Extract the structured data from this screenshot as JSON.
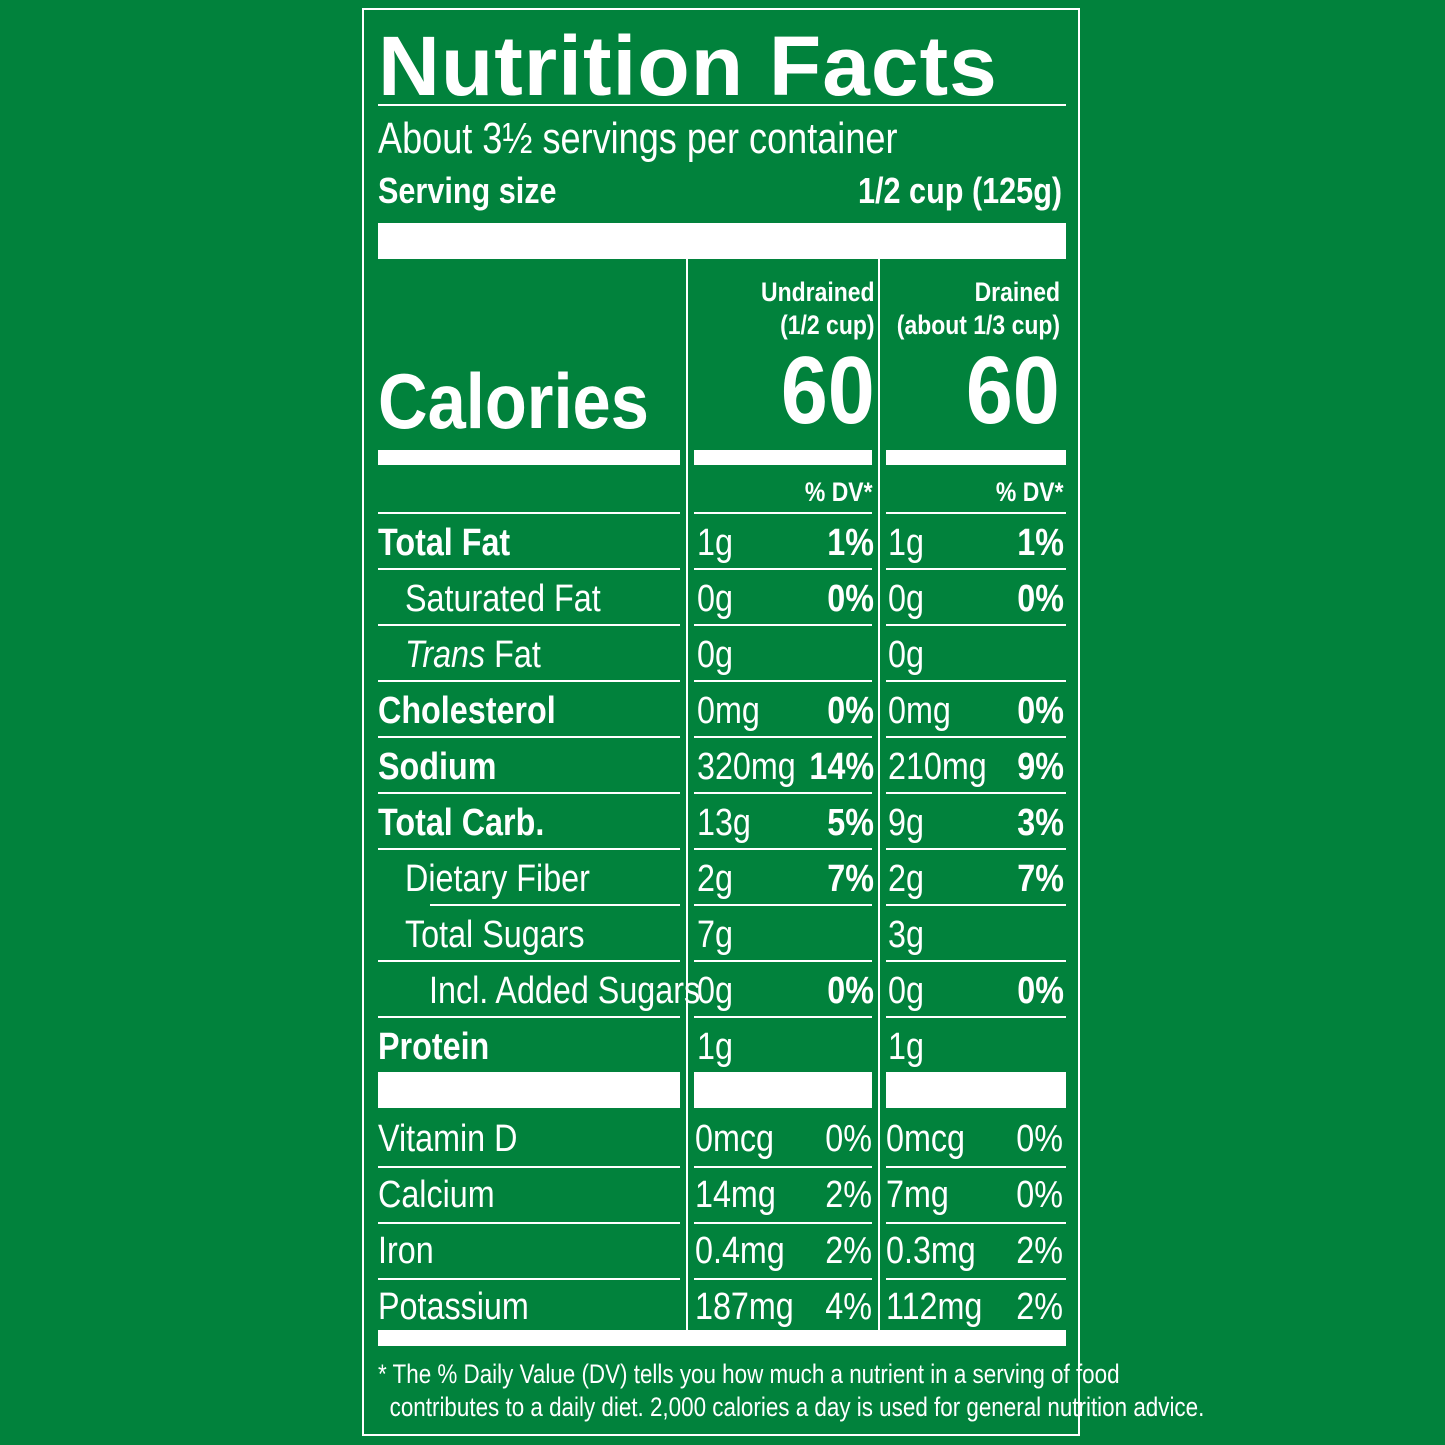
{
  "label": {
    "title": "Nutrition Facts",
    "servings_per_container": "About 3½ servings per container",
    "serving_size_label": "Serving size",
    "serving_size_value": "1/2 cup (125g)",
    "calories_label": "Calories",
    "columns": [
      {
        "name": "Undrained",
        "portion": "(1/2 cup)",
        "calories": "60",
        "dv_header": "% DV*"
      },
      {
        "name": "Drained",
        "portion": "(about 1/3 cup)",
        "calories": "60",
        "dv_header": "% DV*"
      }
    ],
    "nutrients": [
      {
        "label": "Total Fat",
        "undrained_amount": "1g",
        "undrained_dv": "1%",
        "drained_amount": "1g",
        "drained_dv": "1%"
      },
      {
        "label": "Saturated Fat",
        "undrained_amount": "0g",
        "undrained_dv": "0%",
        "drained_amount": "0g",
        "drained_dv": "0%"
      },
      {
        "label_italic": "Trans",
        "label": "Fat",
        "undrained_amount": "0g",
        "undrained_dv": "",
        "drained_amount": "0g",
        "drained_dv": ""
      },
      {
        "label": "Cholesterol",
        "undrained_amount": "0mg",
        "undrained_dv": "0%",
        "drained_amount": "0mg",
        "drained_dv": "0%"
      },
      {
        "label": "Sodium",
        "undrained_amount": "320mg",
        "undrained_dv": "14%",
        "drained_amount": "210mg",
        "drained_dv": "9%"
      },
      {
        "label": "Total Carb.",
        "undrained_amount": "13g",
        "undrained_dv": "5%",
        "drained_amount": "9g",
        "drained_dv": "3%"
      },
      {
        "label": "Dietary Fiber",
        "undrained_amount": "2g",
        "undrained_dv": "7%",
        "drained_amount": "2g",
        "drained_dv": "7%"
      },
      {
        "label": "Total Sugars",
        "undrained_amount": "7g",
        "undrained_dv": "",
        "drained_amount": "3g",
        "drained_dv": ""
      },
      {
        "label": "Incl. Added Sugars",
        "undrained_amount": "0g",
        "undrained_dv": "0%",
        "drained_amount": "0g",
        "drained_dv": "0%"
      },
      {
        "label": "Protein",
        "undrained_amount": "1g",
        "undrained_dv": "",
        "drained_amount": "1g",
        "drained_dv": ""
      }
    ],
    "vitamins": [
      {
        "label": "Vitamin D",
        "undrained_amount": "0mcg",
        "undrained_dv": "0%",
        "drained_amount": "0mcg",
        "drained_dv": "0%"
      },
      {
        "label": "Calcium",
        "undrained_amount": "14mg",
        "undrained_dv": "2%",
        "drained_amount": "7mg",
        "drained_dv": "0%"
      },
      {
        "label": "Iron",
        "undrained_amount": "0.4mg",
        "undrained_dv": "2%",
        "drained_amount": "0.3mg",
        "drained_dv": "2%"
      },
      {
        "label": "Potassium",
        "undrained_amount": "187mg",
        "undrained_dv": "4%",
        "drained_amount": "112mg",
        "drained_dv": "2%"
      }
    ],
    "footnote_line1": "* The % Daily Value (DV) tells you how much a nutrient in a serving of food",
    "footnote_line2": "contributes to a daily diet. 2,000 calories a day is used for general nutrition advice."
  },
  "colors": {
    "background": "#01823c",
    "text": "#ffffff"
  }
}
